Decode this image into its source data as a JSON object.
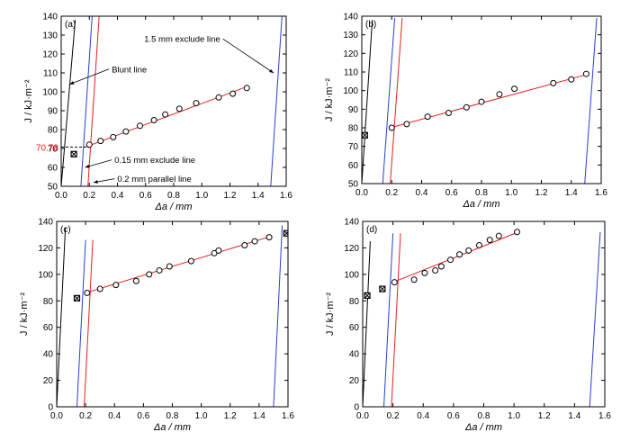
{
  "chart_data": [
    {
      "type": "scatter",
      "panel_label": "(a)",
      "xlabel": "Δa / mm",
      "ylabel": "J / kJ·m⁻²",
      "xlim": [
        0.0,
        1.6
      ],
      "ylim": [
        50,
        140
      ],
      "xticks": [
        "0.0",
        "0.2",
        "0.4",
        "0.6",
        "0.8",
        "1.0",
        "1.2",
        "1.4",
        "1.6"
      ],
      "yticks": [
        "50",
        "60",
        "70",
        "80",
        "90",
        "100",
        "110",
        "120",
        "130",
        "140"
      ],
      "series": [
        {
          "kind": "points",
          "marker": "open-circle",
          "x": [
            0.2,
            0.28,
            0.37,
            0.46,
            0.56,
            0.66,
            0.74,
            0.84,
            0.96,
            1.12,
            1.22,
            1.32
          ],
          "y": [
            72,
            74,
            76,
            79,
            82,
            85,
            88,
            91,
            94,
            97,
            99,
            102
          ]
        },
        {
          "kind": "points",
          "marker": "crossed-square",
          "x": [
            0.09
          ],
          "y": [
            67
          ]
        },
        {
          "kind": "line",
          "color": "#e8201c",
          "x": [
            0.18,
            1.33
          ],
          "y": [
            71,
            103
          ]
        },
        {
          "kind": "line",
          "color": "#000000",
          "x": [
            0.0,
            0.1
          ],
          "y": [
            50,
            138
          ]
        },
        {
          "kind": "line",
          "color": "#2a3fd6",
          "x": [
            0.14,
            0.22
          ],
          "y": [
            50,
            140
          ]
        },
        {
          "kind": "line",
          "color": "#e8201c",
          "x": [
            0.19,
            0.27
          ],
          "y": [
            50,
            140
          ]
        },
        {
          "kind": "line",
          "color": "#2a3fd6",
          "x": [
            1.49,
            1.57
          ],
          "y": [
            50,
            140
          ]
        }
      ],
      "annotations": [
        {
          "text": "Blunt line",
          "x": 0.06,
          "y": 104,
          "tx": 0.34,
          "ty": 112
        },
        {
          "text": "1.5 mm exclude line",
          "x": 1.51,
          "y": 110,
          "tx": 1.15,
          "ty": 128
        },
        {
          "text": "0.15 mm exclude line",
          "x": 0.17,
          "y": 60,
          "tx": 0.36,
          "ty": 64
        },
        {
          "text": "0.2 mm parallel line",
          "x": 0.23,
          "y": 52,
          "tx": 0.38,
          "ty": 54
        }
      ],
      "marked_value": {
        "label": "70.78",
        "y": 70.78,
        "x": 0.2,
        "color": "#e8201c"
      }
    },
    {
      "type": "scatter",
      "panel_label": "(b)",
      "xlabel": "Δa / mm",
      "ylabel": "J / kJ·m⁻²",
      "xlim": [
        0.0,
        1.6
      ],
      "ylim": [
        50,
        140
      ],
      "xticks": [
        "0.0",
        "0.2",
        "0.4",
        "0.6",
        "0.8",
        "1.0",
        "1.2",
        "1.4",
        "1.6"
      ],
      "yticks": [
        "50",
        "60",
        "70",
        "80",
        "90",
        "100",
        "110",
        "120",
        "130",
        "140"
      ],
      "series": [
        {
          "kind": "points",
          "marker": "open-circle",
          "x": [
            0.2,
            0.3,
            0.44,
            0.58,
            0.7,
            0.8,
            0.92,
            1.02,
            1.28,
            1.4,
            1.5
          ],
          "y": [
            80,
            82,
            86,
            88,
            91,
            94,
            98,
            101,
            104,
            106,
            109
          ]
        },
        {
          "kind": "points",
          "marker": "crossed-square",
          "x": [
            0.02
          ],
          "y": [
            76
          ]
        },
        {
          "kind": "line",
          "color": "#e8201c",
          "x": [
            0.19,
            1.52
          ],
          "y": [
            80,
            109
          ]
        },
        {
          "kind": "line",
          "color": "#000000",
          "x": [
            0.0,
            0.07
          ],
          "y": [
            50,
            138
          ]
        },
        {
          "kind": "line",
          "color": "#2a3fd6",
          "x": [
            0.14,
            0.22
          ],
          "y": [
            50,
            139
          ]
        },
        {
          "kind": "line",
          "color": "#e8201c",
          "x": [
            0.19,
            0.27
          ],
          "y": [
            50,
            139
          ]
        },
        {
          "kind": "line",
          "color": "#2a3fd6",
          "x": [
            1.49,
            1.57
          ],
          "y": [
            50,
            139
          ]
        }
      ]
    },
    {
      "type": "scatter",
      "panel_label": "(c)",
      "xlabel": "Δa / mm",
      "ylabel": "J / kJ·m⁻²",
      "xlim": [
        0.0,
        1.6
      ],
      "ylim": [
        0,
        140
      ],
      "xticks": [
        "0.0",
        "0.2",
        "0.4",
        "0.6",
        "0.8",
        "1.0",
        "1.2",
        "1.4",
        "1.6"
      ],
      "yticks": [
        "0",
        "20",
        "40",
        "60",
        "80",
        "100",
        "120",
        "140"
      ],
      "series": [
        {
          "kind": "points",
          "marker": "open-circle",
          "x": [
            0.21,
            0.3,
            0.41,
            0.55,
            0.64,
            0.71,
            0.78,
            0.93,
            1.09,
            1.12,
            1.3,
            1.37,
            1.47
          ],
          "y": [
            86,
            89,
            92,
            95,
            100,
            103,
            106,
            110,
            116,
            118,
            122,
            125,
            128
          ]
        },
        {
          "kind": "points",
          "marker": "crossed-square",
          "x": [
            0.14,
            1.59
          ],
          "y": [
            82,
            131
          ]
        },
        {
          "kind": "line",
          "color": "#e8201c",
          "x": [
            0.2,
            1.49
          ],
          "y": [
            86,
            129
          ]
        },
        {
          "kind": "line",
          "color": "#000000",
          "x": [
            0.0,
            0.06
          ],
          "y": [
            0,
            135
          ]
        },
        {
          "kind": "line",
          "color": "#2a3fd6",
          "x": [
            0.14,
            0.2
          ],
          "y": [
            0,
            126
          ]
        },
        {
          "kind": "line",
          "color": "#e8201c",
          "x": [
            0.19,
            0.25
          ],
          "y": [
            0,
            126
          ]
        },
        {
          "kind": "line",
          "color": "#2a3fd6",
          "x": [
            1.5,
            1.56
          ],
          "y": [
            0,
            137
          ]
        }
      ]
    },
    {
      "type": "scatter",
      "panel_label": "(d)",
      "xlabel": "Δa / mm",
      "ylabel": "J / kJ·m⁻²",
      "xlim": [
        0.0,
        1.6
      ],
      "ylim": [
        0,
        140
      ],
      "xticks": [
        "0.0",
        "0.2",
        "0.4",
        "0.6",
        "0.8",
        "1.0",
        "1.2",
        "1.4",
        "1.6"
      ],
      "yticks": [
        "0",
        "20",
        "40",
        "60",
        "80",
        "100",
        "120",
        "140"
      ],
      "series": [
        {
          "kind": "points",
          "marker": "open-circle",
          "x": [
            0.21,
            0.34,
            0.41,
            0.48,
            0.52,
            0.58,
            0.64,
            0.7,
            0.77,
            0.84,
            0.9,
            1.02
          ],
          "y": [
            94,
            96,
            101,
            103,
            106,
            111,
            115,
            118,
            122,
            126,
            129,
            132
          ]
        },
        {
          "kind": "points",
          "marker": "crossed-square",
          "x": [
            0.03,
            0.13
          ],
          "y": [
            84,
            89
          ]
        },
        {
          "kind": "line",
          "color": "#e8201c",
          "x": [
            0.2,
            1.03
          ],
          "y": [
            94,
            132
          ]
        },
        {
          "kind": "line",
          "color": "#000000",
          "x": [
            0.0,
            0.05
          ],
          "y": [
            0,
            125
          ]
        },
        {
          "kind": "line",
          "color": "#2a3fd6",
          "x": [
            0.14,
            0.2
          ],
          "y": [
            0,
            131
          ]
        },
        {
          "kind": "line",
          "color": "#e8201c",
          "x": [
            0.19,
            0.25
          ],
          "y": [
            0,
            131
          ]
        },
        {
          "kind": "line",
          "color": "#2a3fd6",
          "x": [
            1.5,
            1.57
          ],
          "y": [
            0,
            132
          ]
        }
      ]
    }
  ]
}
